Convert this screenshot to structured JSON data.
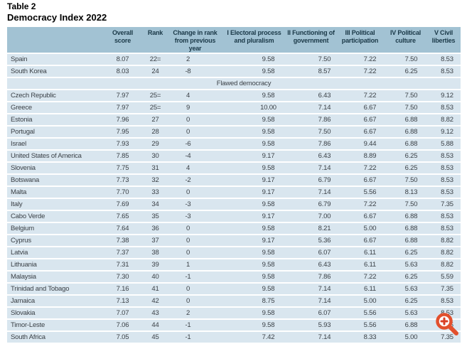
{
  "title": {
    "line1": "Table 2",
    "line2": "Democracy Index 2022"
  },
  "table": {
    "column_headers": [
      [],
      [
        "Overall",
        "score"
      ],
      [
        "Rank"
      ],
      [
        "Change in rank",
        "from previous year"
      ],
      [
        "I Electoral process",
        "and pluralism"
      ],
      [
        "II Functioning of",
        "government"
      ],
      [
        "III Political",
        "participation"
      ],
      [
        "IV Political",
        "culture"
      ],
      [
        "V Civil",
        "liberties"
      ]
    ],
    "rows": [
      {
        "type": "country",
        "cells": [
          "Spain",
          "8.07",
          "22=",
          "2",
          "9.58",
          "7.50",
          "7.22",
          "7.50",
          "8.53"
        ]
      },
      {
        "type": "country",
        "cells": [
          "South Korea",
          "8.03",
          "24",
          "-8",
          "9.58",
          "8.57",
          "7.22",
          "6.25",
          "8.53"
        ]
      },
      {
        "type": "section",
        "label": "Flawed democracy"
      },
      {
        "type": "country",
        "cells": [
          "Czech Republic",
          "7.97",
          "25=",
          "4",
          "9.58",
          "6.43",
          "7.22",
          "7.50",
          "9.12"
        ]
      },
      {
        "type": "country",
        "cells": [
          "Greece",
          "7.97",
          "25=",
          "9",
          "10.00",
          "7.14",
          "6.67",
          "7.50",
          "8.53"
        ]
      },
      {
        "type": "country",
        "cells": [
          "Estonia",
          "7.96",
          "27",
          "0",
          "9.58",
          "7.86",
          "6.67",
          "6.88",
          "8.82"
        ]
      },
      {
        "type": "country",
        "cells": [
          "Portugal",
          "7.95",
          "28",
          "0",
          "9.58",
          "7.50",
          "6.67",
          "6.88",
          "9.12"
        ]
      },
      {
        "type": "country",
        "cells": [
          "Israel",
          "7.93",
          "29",
          "-6",
          "9.58",
          "7.86",
          "9.44",
          "6.88",
          "5.88"
        ]
      },
      {
        "type": "country",
        "cells": [
          "United States of America",
          "7.85",
          "30",
          "-4",
          "9.17",
          "6.43",
          "8.89",
          "6.25",
          "8.53"
        ]
      },
      {
        "type": "country",
        "cells": [
          "Slovenia",
          "7.75",
          "31",
          "4",
          "9.58",
          "7.14",
          "7.22",
          "6.25",
          "8.53"
        ]
      },
      {
        "type": "country",
        "cells": [
          "Botswana",
          "7.73",
          "32",
          "-2",
          "9.17",
          "6.79",
          "6.67",
          "7.50",
          "8.53"
        ]
      },
      {
        "type": "country",
        "cells": [
          "Malta",
          "7.70",
          "33",
          "0",
          "9.17",
          "7.14",
          "5.56",
          "8.13",
          "8.53"
        ]
      },
      {
        "type": "country",
        "cells": [
          "Italy",
          "7.69",
          "34",
          "-3",
          "9.58",
          "6.79",
          "7.22",
          "7.50",
          "7.35"
        ]
      },
      {
        "type": "country",
        "cells": [
          "Cabo Verde",
          "7.65",
          "35",
          "-3",
          "9.17",
          "7.00",
          "6.67",
          "6.88",
          "8.53"
        ]
      },
      {
        "type": "country",
        "cells": [
          "Belgium",
          "7.64",
          "36",
          "0",
          "9.58",
          "8.21",
          "5.00",
          "6.88",
          "8.53"
        ]
      },
      {
        "type": "country",
        "cells": [
          "Cyprus",
          "7.38",
          "37",
          "0",
          "9.17",
          "5.36",
          "6.67",
          "6.88",
          "8.82"
        ]
      },
      {
        "type": "country",
        "cells": [
          "Latvia",
          "7.37",
          "38",
          "0",
          "9.58",
          "6.07",
          "6.11",
          "6.25",
          "8.82"
        ]
      },
      {
        "type": "country",
        "cells": [
          "Lithuania",
          "7.31",
          "39",
          "1",
          "9.58",
          "6.43",
          "6.11",
          "5.63",
          "8.82"
        ]
      },
      {
        "type": "country",
        "cells": [
          "Malaysia",
          "7.30",
          "40",
          "-1",
          "9.58",
          "7.86",
          "7.22",
          "6.25",
          "5.59"
        ]
      },
      {
        "type": "country",
        "cells": [
          "Trinidad and Tobago",
          "7.16",
          "41",
          "0",
          "9.58",
          "7.14",
          "6.11",
          "5.63",
          "7.35"
        ]
      },
      {
        "type": "country",
        "cells": [
          "Jamaica",
          "7.13",
          "42",
          "0",
          "8.75",
          "7.14",
          "5.00",
          "6.25",
          "8.53"
        ]
      },
      {
        "type": "country",
        "cells": [
          "Slovakia",
          "7.07",
          "43",
          "2",
          "9.58",
          "6.07",
          "5.56",
          "5.63",
          "8.53"
        ]
      },
      {
        "type": "country",
        "cells": [
          "Timor-Leste",
          "7.06",
          "44",
          "-1",
          "9.58",
          "5.93",
          "5.56",
          "6.88",
          "7.35"
        ]
      },
      {
        "type": "country",
        "cells": [
          "South Africa",
          "7.05",
          "45",
          "-1",
          "7.42",
          "7.14",
          "8.33",
          "5.00",
          "7.35"
        ]
      }
    ]
  },
  "icons": {
    "zoom_in": "magnifier-with-plus"
  },
  "colors": {
    "header_band": "#a2c2d3",
    "row_band": "#d9e6ef",
    "separator": "#ffffff",
    "header_text": "#1b3948",
    "body_text": "#3b4147",
    "magnifier_ring": "#e2502d",
    "magnifier_plus": "#d93f25"
  }
}
